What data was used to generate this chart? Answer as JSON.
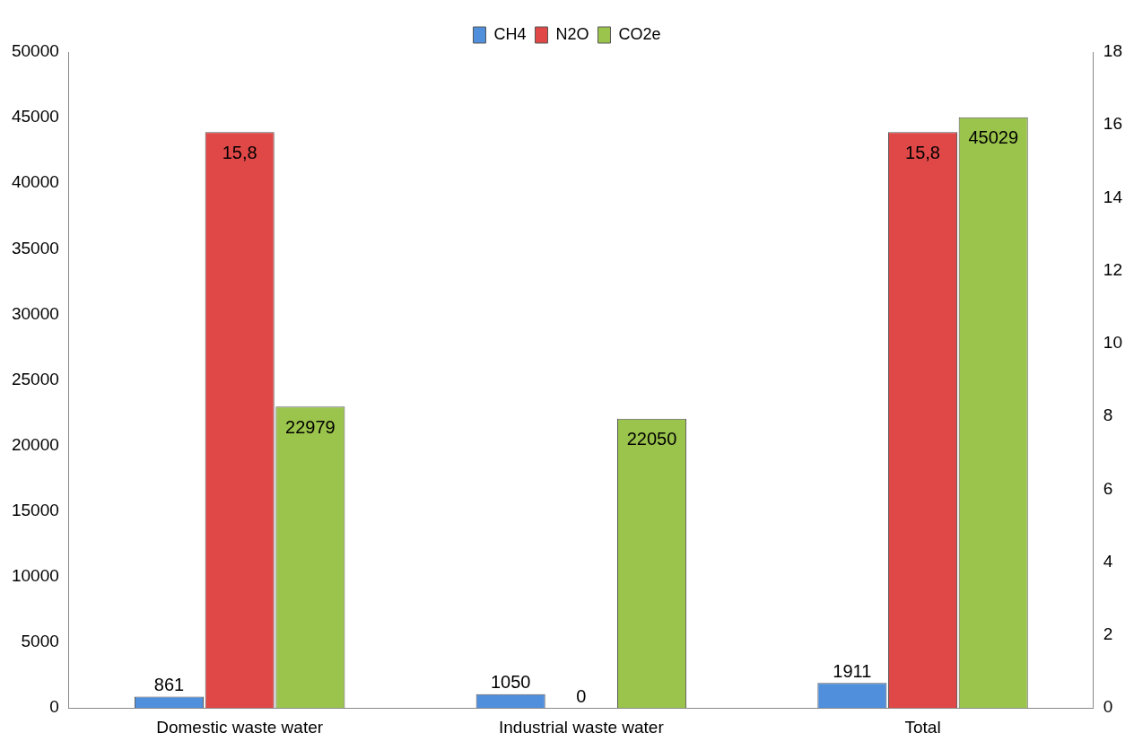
{
  "chart_data": {
    "type": "bar",
    "categories": [
      "Domestic waste water",
      "Industrial waste water",
      "Total"
    ],
    "series": [
      {
        "name": "CH4",
        "color": "#4f8fdb",
        "values": [
          861,
          1050,
          1911
        ],
        "value_labels": [
          "861",
          "1050",
          "1911"
        ]
      },
      {
        "name": "N2O",
        "color": "#e04848",
        "axis": "y2",
        "values": [
          15.8,
          0,
          15.8
        ],
        "value_labels": [
          "15,8",
          "0",
          "15,8"
        ]
      },
      {
        "name": "CO2e",
        "color": "#9bc44c",
        "values": [
          22979,
          22050,
          45029
        ],
        "value_labels": [
          "22979",
          "22050",
          "45029"
        ]
      }
    ],
    "ylim": [
      0,
      50000
    ],
    "yticks": [
      0,
      5000,
      10000,
      15000,
      20000,
      25000,
      30000,
      35000,
      40000,
      45000,
      50000
    ],
    "y2lim": [
      0,
      18
    ],
    "y2ticks": [
      0,
      2,
      4,
      6,
      8,
      10,
      12,
      14,
      16,
      18
    ],
    "grid": false,
    "legend": "top"
  }
}
